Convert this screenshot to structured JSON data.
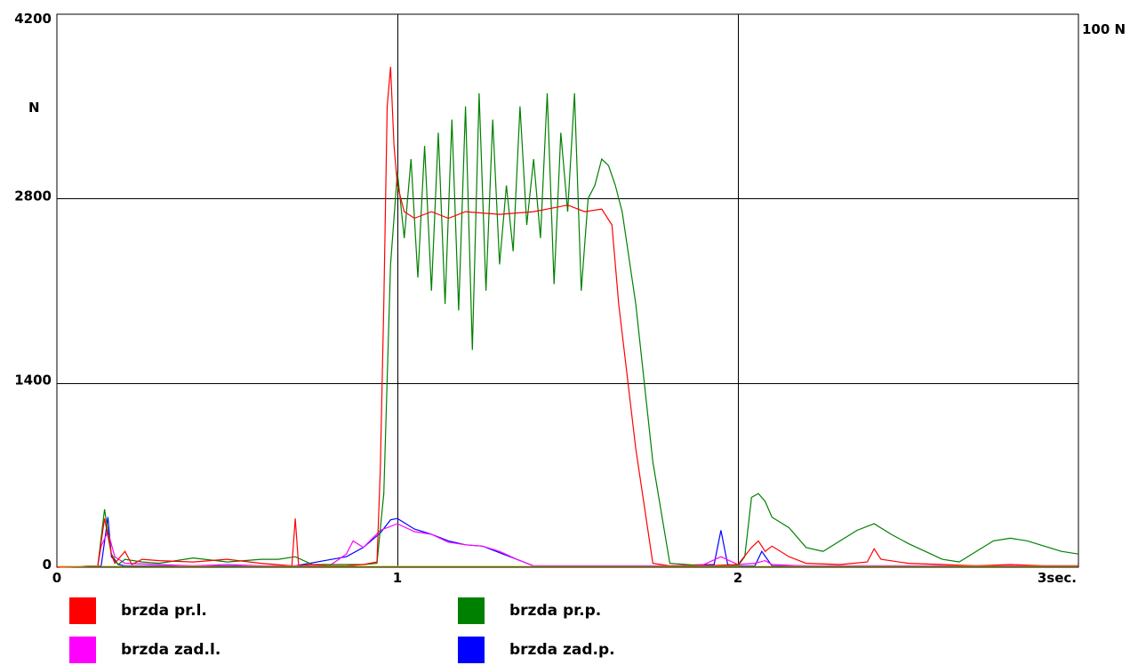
{
  "chart_data": {
    "type": "line",
    "title": "",
    "xlabel": "",
    "ylabel": "N",
    "right_axis_label": "100 N",
    "x_tick_labels": [
      "0",
      "1",
      "2",
      "3sec."
    ],
    "x_ticks": [
      0,
      1,
      2,
      3
    ],
    "xlim": [
      0,
      3
    ],
    "y_tick_labels": [
      "0",
      "1400",
      "2800",
      "4200"
    ],
    "y_ticks": [
      0,
      1400,
      2800,
      4200
    ],
    "ylim": [
      0,
      4200
    ],
    "grid": true,
    "legend_position": "bottom",
    "series": [
      {
        "name": "brzda pr.l.",
        "color": "#ff0000",
        "x": [
          0,
          0.12,
          0.14,
          0.16,
          0.17,
          0.2,
          0.22,
          0.25,
          0.3,
          0.4,
          0.5,
          0.6,
          0.69,
          0.7,
          0.71,
          0.75,
          0.8,
          0.85,
          0.9,
          0.94,
          0.95,
          0.96,
          0.97,
          0.98,
          0.99,
          1.0,
          1.02,
          1.05,
          1.1,
          1.15,
          1.2,
          1.3,
          1.4,
          1.5,
          1.55,
          1.6,
          1.63,
          1.65,
          1.7,
          1.75,
          1.8,
          1.9,
          2.0,
          2.04,
          2.06,
          2.08,
          2.1,
          2.15,
          2.2,
          2.3,
          2.38,
          2.4,
          2.42,
          2.5,
          2.6,
          2.7,
          2.8,
          2.9,
          3.0
        ],
        "y": [
          0,
          10,
          370,
          100,
          30,
          120,
          20,
          60,
          50,
          40,
          60,
          30,
          10,
          370,
          10,
          20,
          10,
          10,
          20,
          40,
          750,
          2000,
          3500,
          3800,
          3200,
          2900,
          2700,
          2650,
          2700,
          2650,
          2700,
          2680,
          2700,
          2750,
          2700,
          2720,
          2600,
          2000,
          900,
          30,
          10,
          10,
          20,
          150,
          200,
          120,
          160,
          80,
          30,
          20,
          40,
          140,
          60,
          30,
          20,
          10,
          20,
          10,
          10
        ]
      },
      {
        "name": "brzda pr.p.",
        "color": "#008000",
        "x": [
          0,
          0.12,
          0.14,
          0.16,
          0.18,
          0.2,
          0.25,
          0.3,
          0.4,
          0.5,
          0.6,
          0.65,
          0.7,
          0.75,
          0.8,
          0.9,
          0.94,
          0.96,
          0.98,
          1.0,
          1.02,
          1.04,
          1.06,
          1.08,
          1.1,
          1.12,
          1.14,
          1.16,
          1.18,
          1.2,
          1.22,
          1.24,
          1.26,
          1.28,
          1.3,
          1.32,
          1.34,
          1.36,
          1.38,
          1.4,
          1.42,
          1.44,
          1.46,
          1.48,
          1.5,
          1.52,
          1.54,
          1.56,
          1.58,
          1.6,
          1.62,
          1.64,
          1.66,
          1.7,
          1.75,
          1.8,
          1.9,
          2.0,
          2.02,
          2.04,
          2.06,
          2.08,
          2.1,
          2.15,
          2.2,
          2.25,
          2.3,
          2.35,
          2.4,
          2.45,
          2.5,
          2.55,
          2.6,
          2.65,
          2.7,
          2.75,
          2.8,
          2.85,
          2.9,
          2.95,
          3.0
        ],
        "y": [
          0,
          10,
          440,
          100,
          20,
          60,
          40,
          30,
          70,
          40,
          60,
          60,
          80,
          20,
          20,
          20,
          30,
          560,
          2300,
          3000,
          2500,
          3100,
          2200,
          3200,
          2100,
          3300,
          2000,
          3400,
          1950,
          3500,
          1650,
          3600,
          2100,
          3400,
          2300,
          2900,
          2400,
          3500,
          2600,
          3100,
          2500,
          3600,
          2150,
          3300,
          2700,
          3600,
          2100,
          2800,
          2900,
          3100,
          3050,
          2900,
          2700,
          2000,
          800,
          30,
          10,
          10,
          80,
          530,
          560,
          500,
          380,
          300,
          150,
          120,
          200,
          280,
          330,
          250,
          180,
          120,
          60,
          40,
          120,
          200,
          220,
          200,
          160,
          120,
          100
        ]
      },
      {
        "name": "brzda zad.l.",
        "color": "#ff00ff",
        "x": [
          0,
          0.12,
          0.13,
          0.15,
          0.17,
          0.2,
          0.3,
          0.4,
          0.5,
          0.6,
          0.7,
          0.8,
          0.85,
          0.87,
          0.9,
          0.95,
          1.0,
          1.05,
          1.1,
          1.15,
          1.2,
          1.25,
          1.3,
          1.35,
          1.4,
          1.5,
          1.8,
          1.9,
          1.95,
          2.0,
          2.05,
          2.08,
          2.1,
          2.2,
          2.5,
          3.0
        ],
        "y": [
          0,
          10,
          160,
          270,
          80,
          30,
          20,
          10,
          20,
          10,
          10,
          10,
          100,
          200,
          150,
          280,
          330,
          270,
          250,
          190,
          170,
          160,
          120,
          60,
          10,
          10,
          10,
          20,
          80,
          20,
          30,
          50,
          20,
          10,
          10,
          10
        ]
      },
      {
        "name": "brzda zad.p.",
        "color": "#0000ff",
        "x": [
          0,
          0.13,
          0.15,
          0.16,
          0.18,
          0.2,
          0.3,
          0.5,
          0.7,
          0.85,
          0.9,
          0.95,
          0.98,
          1.0,
          1.05,
          1.1,
          1.15,
          1.2,
          1.25,
          1.3,
          1.35,
          1.4,
          1.5,
          1.8,
          1.93,
          1.95,
          1.97,
          2.0,
          2.05,
          2.07,
          2.1,
          2.2,
          3.0
        ],
        "y": [
          0,
          10,
          380,
          80,
          20,
          10,
          10,
          10,
          10,
          80,
          150,
          260,
          360,
          370,
          290,
          250,
          200,
          170,
          160,
          110,
          60,
          10,
          10,
          10,
          20,
          280,
          20,
          10,
          10,
          120,
          10,
          10,
          10
        ]
      }
    ]
  }
}
